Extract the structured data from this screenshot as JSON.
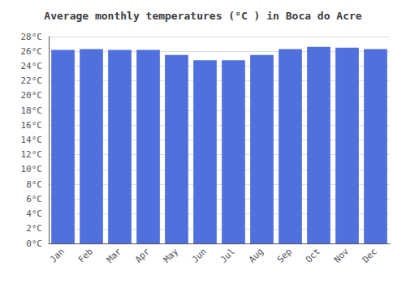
{
  "chart_data": {
    "type": "bar",
    "title": "Average monthly temperatures (°C ) in Boca do Acre",
    "categories": [
      "Jan",
      "Feb",
      "Mar",
      "Apr",
      "May",
      "Jun",
      "Jul",
      "Aug",
      "Sep",
      "Oct",
      "Nov",
      "Dec"
    ],
    "values": [
      26.2,
      26.3,
      26.2,
      26.2,
      25.5,
      24.8,
      24.8,
      25.5,
      26.3,
      26.6,
      26.5,
      26.3
    ],
    "ylim": [
      0,
      28
    ],
    "yticks": [
      {
        "value": 0,
        "label": "0°C"
      },
      {
        "value": 2,
        "label": "2°C"
      },
      {
        "value": 4,
        "label": "4°C"
      },
      {
        "value": 6,
        "label": "6°C"
      },
      {
        "value": 8,
        "label": "8°C"
      },
      {
        "value": 10,
        "label": "10°C"
      },
      {
        "value": 12,
        "label": "12°C"
      },
      {
        "value": 14,
        "label": "14°C"
      },
      {
        "value": 16,
        "label": "16°C"
      },
      {
        "value": 18,
        "label": "18°C"
      },
      {
        "value": 20,
        "label": "20°C"
      },
      {
        "value": 22,
        "label": "22°C"
      },
      {
        "value": 24,
        "label": "24°C"
      },
      {
        "value": 26,
        "label": "26°C"
      },
      {
        "value": 28,
        "label": "28°C"
      }
    ],
    "grid": true
  }
}
